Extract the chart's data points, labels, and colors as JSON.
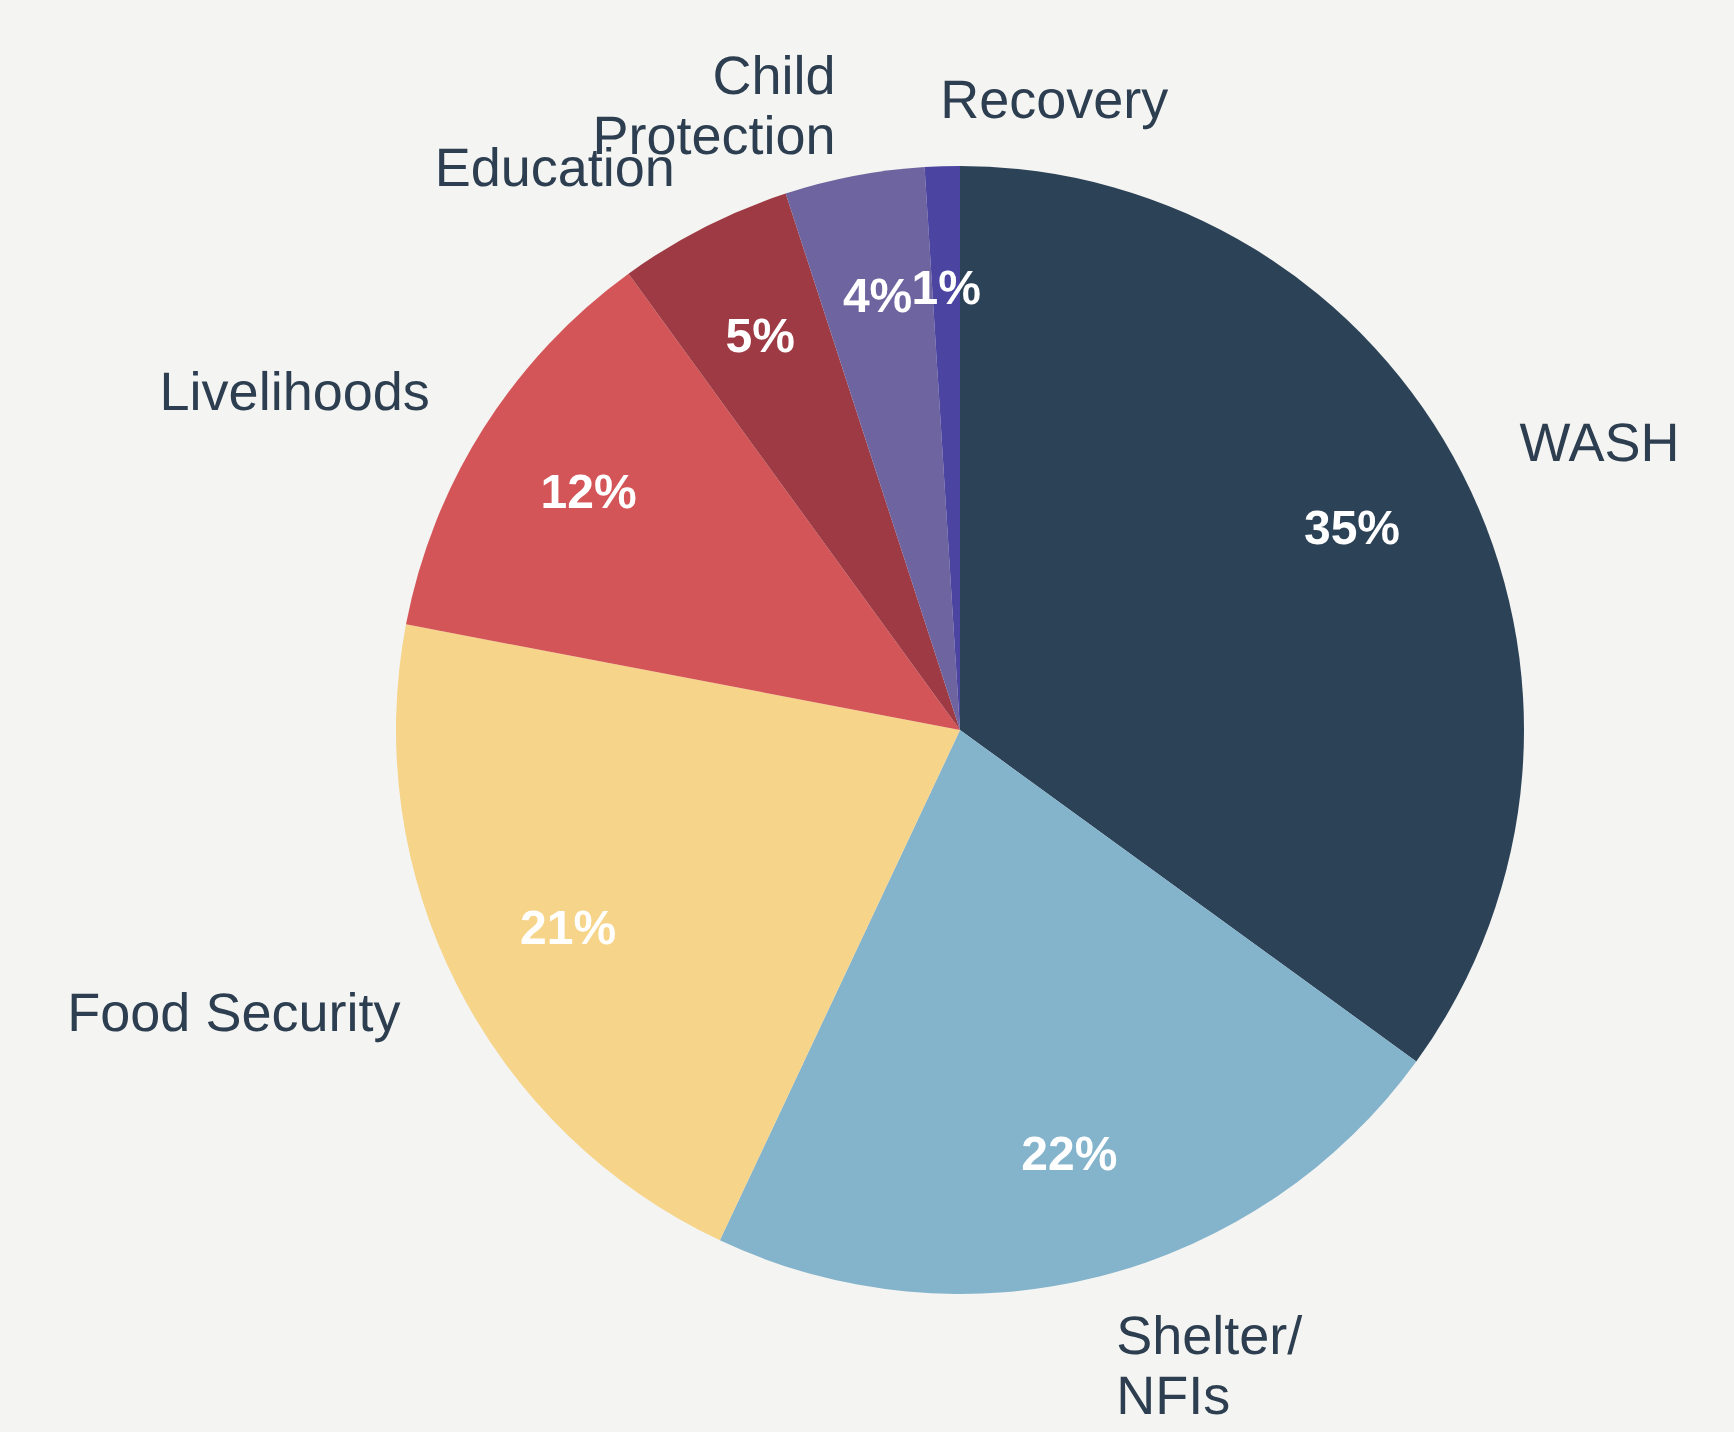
{
  "chart_data": {
    "type": "pie",
    "categories": [
      "WASH",
      "Shelter/\nNFIs",
      "Food Security",
      "Livelihoods",
      "Education",
      "Child\nProtection",
      "Recovery"
    ],
    "values": [
      35,
      22,
      21,
      12,
      5,
      4,
      1
    ],
    "value_labels": [
      "35%",
      "22%",
      "21%",
      "12%",
      "5%",
      "4%",
      "1%"
    ],
    "colors": [
      "#2c4257",
      "#84b3cc",
      "#f6d489",
      "#d45558",
      "#9e3a43",
      "#6e64a0",
      "#4b44a0"
    ]
  }
}
